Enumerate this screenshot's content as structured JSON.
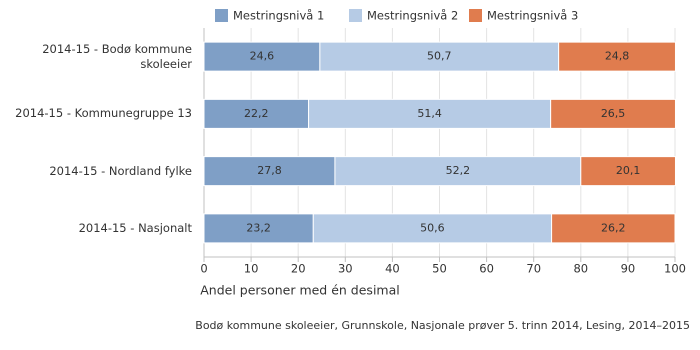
{
  "chart_data": {
    "type": "stacked-bar-horizontal",
    "categories": [
      "2014-15 - Bodø kommune skoleeier",
      "2014-15 - Kommunegruppe 13",
      "2014-15 - Nordland fylke",
      "2014-15 - Nasjonalt"
    ],
    "series": [
      {
        "name": "Mestringsnivå 1",
        "color": "#7f9fc6",
        "values": [
          24.6,
          22.2,
          27.8,
          23.2
        ],
        "value_labels": [
          "24,6",
          "22,2",
          "27,8",
          "23,2"
        ]
      },
      {
        "name": "Mestringsnivå 2",
        "color": "#b6cbe5",
        "values": [
          50.7,
          51.4,
          52.2,
          50.6
        ],
        "value_labels": [
          "50,7",
          "51,4",
          "52,2",
          "50,6"
        ]
      },
      {
        "name": "Mestringsnivå 3",
        "color": "#e07c4e",
        "values": [
          24.8,
          26.5,
          20.1,
          26.2
        ],
        "value_labels": [
          "24,8",
          "26,5",
          "20,1",
          "26,2"
        ]
      }
    ],
    "xlim": [
      0,
      100
    ],
    "xticks": [
      0,
      10,
      20,
      30,
      40,
      50,
      60,
      70,
      80,
      90,
      100
    ],
    "grid": true,
    "xlabel": "Andel personer med én desimal",
    "footnote": "Bodø kommune skoleeier, Grunnskole, Nasjonale prøver 5. trinn 2014, Lesing, 2014–2015",
    "legend": "top"
  }
}
